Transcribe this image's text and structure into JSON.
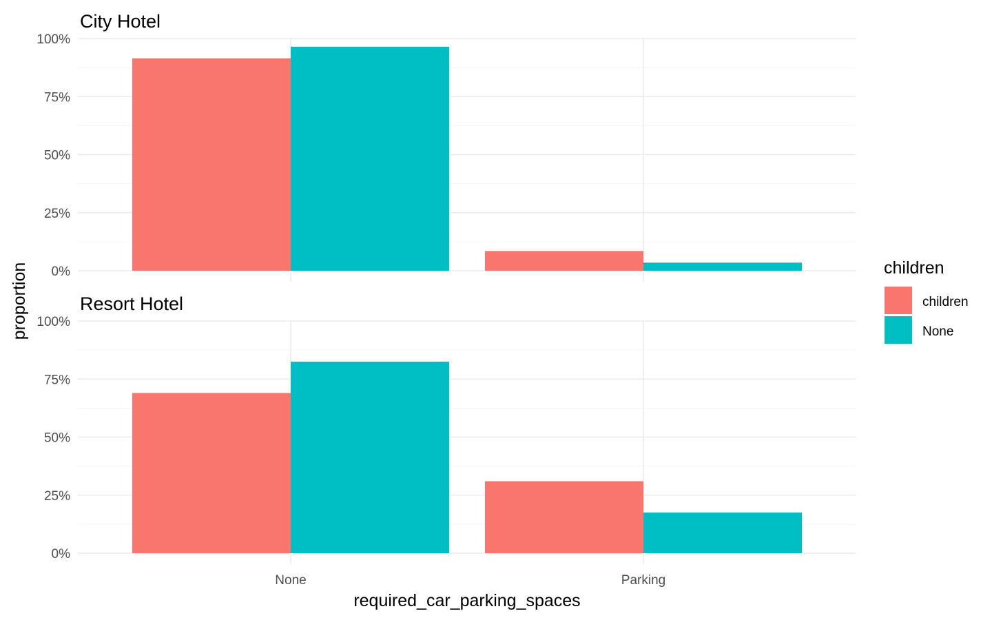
{
  "chart_data": {
    "type": "bar",
    "xlabel": "required_car_parking_spaces",
    "ylabel": "proportion",
    "categories": [
      "None",
      "Parking"
    ],
    "ylim": [
      0,
      1
    ],
    "y_ticks": [
      "0%",
      "25%",
      "50%",
      "75%",
      "100%"
    ],
    "legend": {
      "title": "children",
      "position": "right",
      "entries": [
        {
          "name": "children",
          "color": "#F8766D"
        },
        {
          "name": "None",
          "color": "#00BFC4"
        }
      ]
    },
    "facets": [
      {
        "title": "City Hotel",
        "series": [
          {
            "name": "children",
            "values": [
              0.915,
              0.085
            ]
          },
          {
            "name": "None",
            "values": [
              0.965,
              0.035
            ]
          }
        ]
      },
      {
        "title": "Resort Hotel",
        "series": [
          {
            "name": "children",
            "values": [
              0.69,
              0.31
            ]
          },
          {
            "name": "None",
            "values": [
              0.825,
              0.175
            ]
          }
        ]
      }
    ],
    "grid": true
  }
}
